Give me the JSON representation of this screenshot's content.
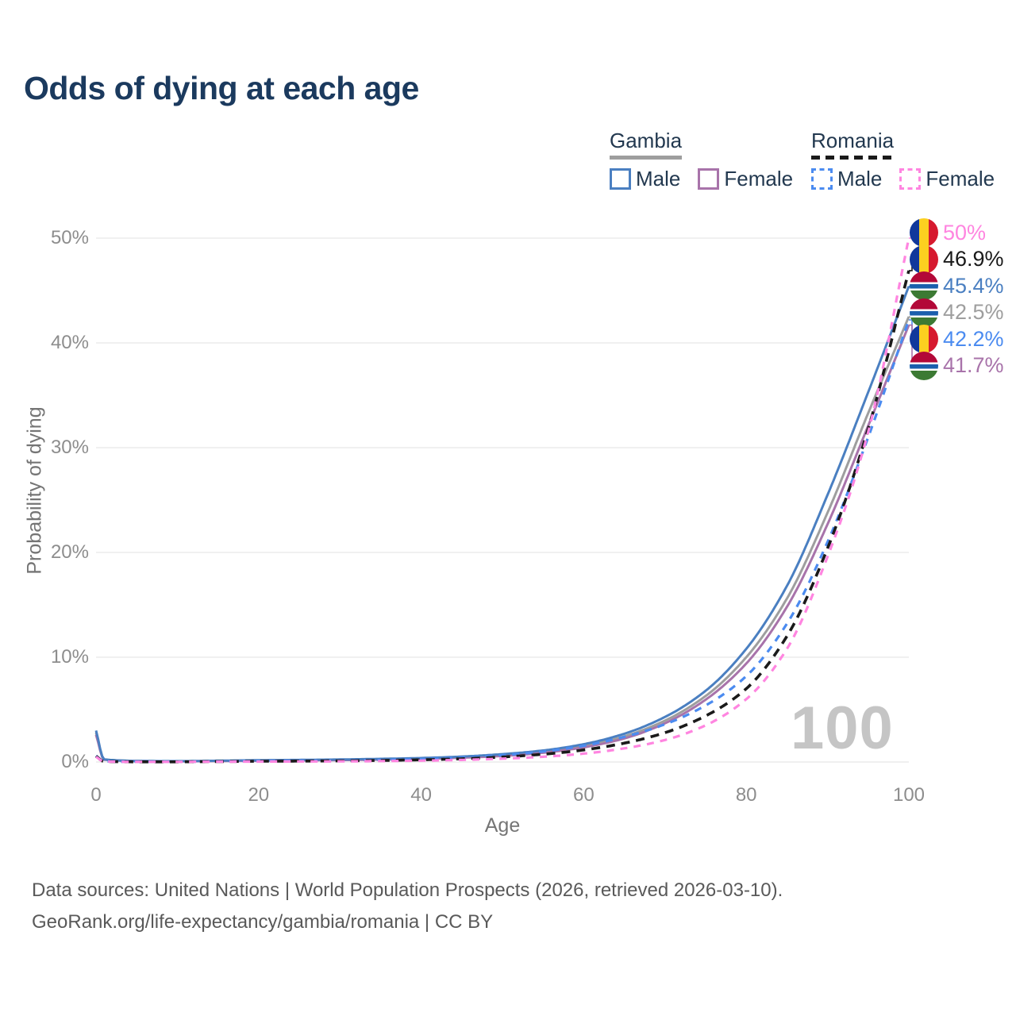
{
  "header": {
    "title": "Odds of dying at each age"
  },
  "legend": {
    "groups": [
      {
        "name": "Gambia",
        "line_style": "solid",
        "underline_color": "#9e9e9e",
        "items": [
          {
            "label": "Male",
            "color": "#4a7fc1"
          },
          {
            "label": "Female",
            "color": "#a873aa"
          }
        ]
      },
      {
        "name": "Romania",
        "line_style": "dashed",
        "underline_color": "#1a1a1a",
        "items": [
          {
            "label": "Male",
            "color": "#4b8bf0"
          },
          {
            "label": "Female",
            "color": "#ff85e0"
          }
        ]
      }
    ]
  },
  "chart_data": {
    "type": "line",
    "title": "Odds of dying at each age",
    "xlabel": "Age",
    "ylabel": "Probability of dying",
    "xlim": [
      0,
      100
    ],
    "ylim": [
      0,
      50
    ],
    "x_ticks": [
      0,
      20,
      40,
      60,
      80,
      100
    ],
    "y_ticks": [
      "0%",
      "10%",
      "20%",
      "30%",
      "40%",
      "50%"
    ],
    "grid": "horizontal",
    "legend_position": "top-right",
    "watermark": "100",
    "x": [
      0,
      1,
      5,
      10,
      15,
      20,
      25,
      30,
      35,
      40,
      45,
      50,
      55,
      60,
      65,
      70,
      75,
      80,
      85,
      90,
      95,
      100
    ],
    "series": [
      {
        "name": "Gambia Male",
        "country": "Gambia",
        "sex": "Male",
        "color": "#4a7fc1",
        "dash": false,
        "end_label": "45.4%",
        "values": [
          3.0,
          0.25,
          0.1,
          0.08,
          0.12,
          0.17,
          0.2,
          0.24,
          0.3,
          0.38,
          0.52,
          0.75,
          1.1,
          1.7,
          2.7,
          4.3,
          6.8,
          10.8,
          16.8,
          25.5,
          35.3,
          45.4
        ]
      },
      {
        "name": "Gambia Female",
        "country": "Gambia",
        "sex": "Female",
        "color": "#a873aa",
        "dash": false,
        "end_label": "41.7%",
        "values": [
          2.6,
          0.22,
          0.09,
          0.07,
          0.09,
          0.12,
          0.15,
          0.18,
          0.23,
          0.3,
          0.41,
          0.58,
          0.88,
          1.4,
          2.25,
          3.7,
          5.95,
          9.4,
          14.8,
          22.7,
          32.1,
          41.7
        ]
      },
      {
        "name": "Gambia Both",
        "country": "Gambia",
        "sex": "Both",
        "color": "#9e9e9e",
        "dash": false,
        "end_label": "42.5%",
        "values": [
          2.8,
          0.24,
          0.095,
          0.075,
          0.1,
          0.15,
          0.18,
          0.21,
          0.26,
          0.34,
          0.46,
          0.66,
          0.98,
          1.52,
          2.45,
          3.95,
          6.3,
          10.0,
          15.6,
          23.8,
          33.3,
          42.5
        ]
      },
      {
        "name": "Romania Male",
        "country": "Romania",
        "sex": "Male",
        "color": "#4b8bf0",
        "dash": true,
        "end_label": "42.2%",
        "values": [
          0.6,
          0.05,
          0.02,
          0.02,
          0.06,
          0.1,
          0.12,
          0.15,
          0.2,
          0.28,
          0.42,
          0.65,
          1.0,
          1.55,
          2.4,
          3.6,
          5.4,
          8.2,
          13.2,
          21.0,
          31.0,
          42.2
        ]
      },
      {
        "name": "Romania Both",
        "country": "Romania",
        "sex": "Both",
        "color": "#1a1a1a",
        "dash": true,
        "end_label": "46.9%",
        "values": [
          0.55,
          0.045,
          0.018,
          0.018,
          0.045,
          0.07,
          0.09,
          0.11,
          0.15,
          0.21,
          0.31,
          0.48,
          0.74,
          1.15,
          1.8,
          2.8,
          4.4,
          7.0,
          12.0,
          20.4,
          31.8,
          46.9
        ]
      },
      {
        "name": "Romania Female",
        "country": "Romania",
        "sex": "Female",
        "color": "#ff85e0",
        "dash": true,
        "end_label": "50%",
        "values": [
          0.5,
          0.04,
          0.015,
          0.015,
          0.03,
          0.04,
          0.05,
          0.06,
          0.09,
          0.13,
          0.2,
          0.32,
          0.5,
          0.8,
          1.3,
          2.1,
          3.5,
          6.0,
          10.8,
          19.6,
          31.5,
          50.0
        ]
      }
    ],
    "end_labels": [
      {
        "value": "50%",
        "flag": "romania",
        "color": "#ff85e0",
        "series": "Romania Female"
      },
      {
        "value": "46.9%",
        "flag": "romania",
        "color": "#1a1a1a",
        "series": "Romania Both"
      },
      {
        "value": "45.4%",
        "flag": "gambia",
        "color": "#4a7fc1",
        "series": "Gambia Male"
      },
      {
        "value": "42.5%",
        "flag": "gambia",
        "color": "#9e9e9e",
        "series": "Gambia Both"
      },
      {
        "value": "42.2%",
        "flag": "romania",
        "color": "#4b8bf0",
        "series": "Romania Male"
      },
      {
        "value": "41.7%",
        "flag": "gambia",
        "color": "#a873aa",
        "series": "Gambia Female"
      }
    ],
    "flag_colors": {
      "romania": [
        "#10389c",
        "#fcd020",
        "#d6192e"
      ],
      "gambia": [
        "#b30838",
        "#ffffff",
        "#1b5fad",
        "#ffffff",
        "#3c7a33"
      ]
    }
  },
  "footer": {
    "line1": "Data sources: United Nations | World Population Prospects (2026, retrieved 2026-03-10).",
    "line2": "GeoRank.org/life-expectancy/gambia/romania | CC BY"
  }
}
